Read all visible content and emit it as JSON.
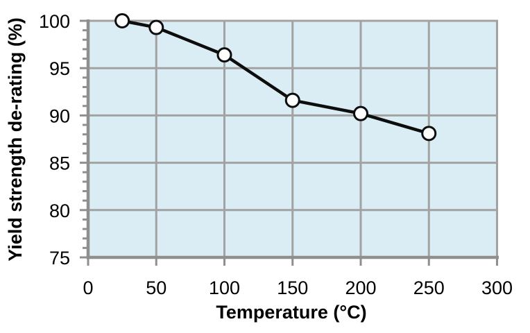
{
  "chart_data": {
    "type": "line",
    "title": "",
    "xlabel": "Temperature (°C)",
    "ylabel": "Yield strength de-rating (%)",
    "x": [
      25,
      50,
      100,
      150,
      200,
      250
    ],
    "series": [
      {
        "name": "yield-strength-de-rating",
        "values": [
          100,
          99.3,
          96.4,
          91.6,
          90.2,
          88.1
        ]
      }
    ],
    "xlim": [
      0,
      300
    ],
    "ylim": [
      75,
      100
    ],
    "x_ticks": [
      0,
      50,
      100,
      150,
      200,
      250,
      300
    ],
    "y_ticks": [
      75,
      80,
      85,
      90,
      95,
      100
    ],
    "y_minor_unit": 1,
    "grid": true,
    "legend_position": "none",
    "colors": {
      "page_bg": "#ffffff",
      "plot_bg": "#daedf4",
      "gridline": "#a2a2a2",
      "axis_line": "#8f8f8f",
      "series_line": "#0d0d0d",
      "marker_fill": "#ffffff",
      "marker_stroke": "#0d0d0d",
      "tick_label": "#000000"
    }
  }
}
